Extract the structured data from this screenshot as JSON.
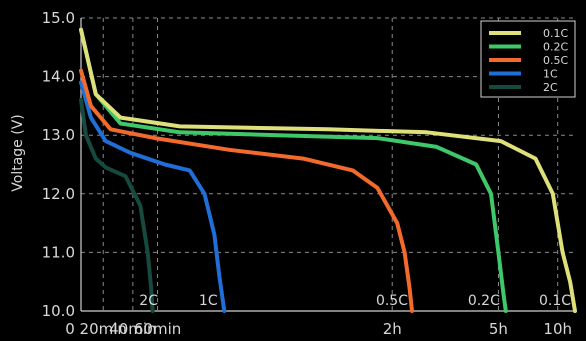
{
  "chart_data": {
    "type": "line",
    "ylabel": "Voltage (V)",
    "ylim": [
      10.0,
      15.0
    ],
    "yticks": [
      "10.0",
      "11.0",
      "12.0",
      "13.0",
      "14.0",
      "15.0"
    ],
    "xticks": [
      "0",
      "20min",
      "40min",
      "60min",
      "2h",
      "5h",
      "10h"
    ],
    "grid": true,
    "legend_position": "top-right",
    "series": [
      {
        "name": "0.1C",
        "color": "#dfe07a",
        "end_label": "0.1C",
        "x": [
          0,
          0.03,
          0.08,
          0.2,
          0.5,
          0.7,
          0.85,
          0.92,
          0.955,
          0.975,
          0.99,
          1.0
        ],
        "y": [
          14.8,
          13.7,
          13.3,
          13.15,
          13.1,
          13.05,
          12.9,
          12.6,
          12.0,
          11.0,
          10.5,
          10.0
        ]
      },
      {
        "name": "0.2C",
        "color": "#3ec86a",
        "end_label": "0.2C",
        "x": [
          0,
          0.03,
          0.08,
          0.2,
          0.4,
          0.6,
          0.72,
          0.8,
          0.83,
          0.845,
          0.855,
          0.86
        ],
        "y": [
          14.8,
          13.7,
          13.2,
          13.05,
          13.0,
          12.95,
          12.8,
          12.5,
          12.0,
          11.0,
          10.3,
          10.0
        ]
      },
      {
        "name": "0.5C",
        "color": "#f36b2c",
        "end_label": "0.5C",
        "x": [
          0,
          0.02,
          0.06,
          0.15,
          0.3,
          0.45,
          0.55,
          0.6,
          0.64,
          0.655,
          0.665,
          0.67
        ],
        "y": [
          14.1,
          13.5,
          13.1,
          12.95,
          12.75,
          12.6,
          12.4,
          12.1,
          11.5,
          11.0,
          10.4,
          10.0
        ]
      },
      {
        "name": "1C",
        "color": "#1f6fd6",
        "end_label": "1C",
        "x": [
          0,
          0.02,
          0.05,
          0.1,
          0.17,
          0.22,
          0.25,
          0.27,
          0.28,
          0.29
        ],
        "y": [
          13.9,
          13.3,
          12.9,
          12.7,
          12.5,
          12.4,
          12.0,
          11.3,
          10.6,
          10.0
        ]
      },
      {
        "name": "2C",
        "color": "#164a3e",
        "end_label": "2C",
        "x": [
          0,
          0.01,
          0.03,
          0.05,
          0.09,
          0.12,
          0.135,
          0.142,
          0.145
        ],
        "y": [
          13.6,
          13.0,
          12.6,
          12.45,
          12.3,
          11.8,
          11.0,
          10.4,
          10.0
        ]
      }
    ]
  }
}
